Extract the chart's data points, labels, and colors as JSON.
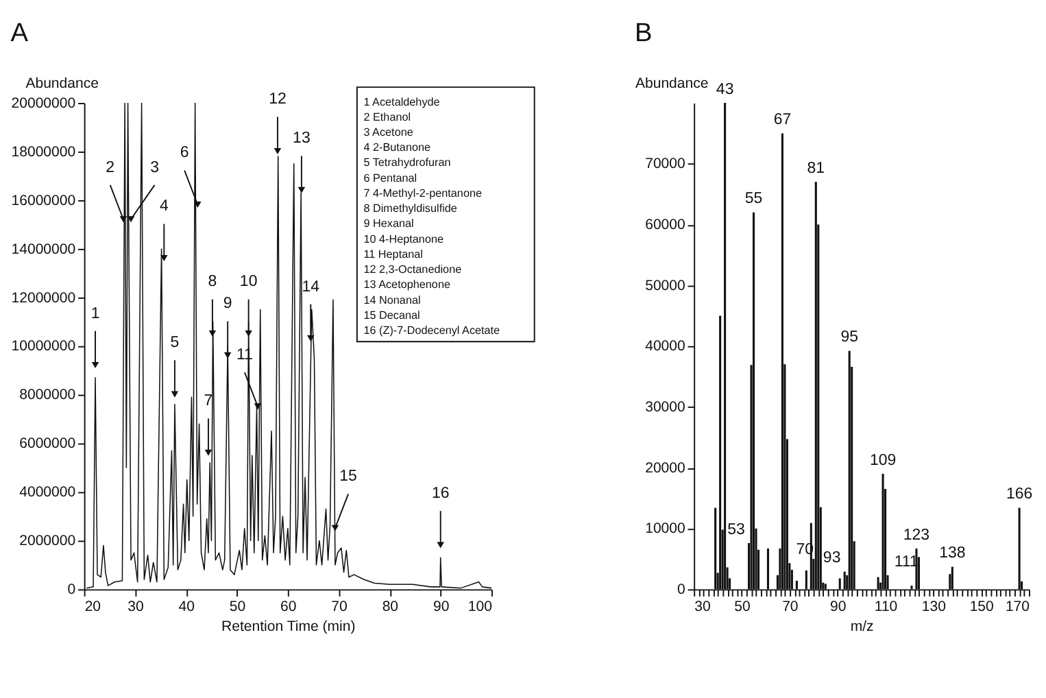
{
  "chart_data": [
    {
      "type": "line",
      "title": "A",
      "xlabel": "Retention Time (min)",
      "ylabel": "Abundance",
      "xlim": [
        20,
        100
      ],
      "xticks": [
        20,
        30,
        40,
        50,
        60,
        70,
        80,
        90,
        100
      ],
      "ylim": [
        0,
        20000000
      ],
      "yticks": [
        0,
        2000000,
        4000000,
        6000000,
        8000000,
        10000000,
        12000000,
        14000000,
        16000000,
        18000000,
        20000000
      ],
      "x": [
        20.5,
        21.8,
        22.2,
        22.6,
        23.3,
        23.8,
        24.2,
        24.7,
        26.0,
        27.5,
        28.0,
        28.3,
        28.6,
        29.2,
        29.8,
        30.5,
        31.3,
        31.8,
        32.5,
        33.0,
        33.6,
        34.3,
        35.2,
        35.7,
        36.5,
        37.2,
        37.5,
        37.8,
        38.4,
        39.0,
        39.5,
        39.8,
        40.2,
        40.6,
        41.1,
        41.4,
        41.8,
        42.2,
        42.6,
        43.0,
        43.6,
        44.1,
        44.4,
        44.7,
        45.0,
        45.3,
        45.8,
        46.5,
        47.2,
        47.6,
        48.2,
        48.7,
        49.5,
        50.5,
        51.0,
        51.5,
        52.0,
        52.3,
        52.7,
        53.0,
        53.4,
        53.9,
        54.2,
        54.6,
        55.0,
        55.5,
        56.0,
        56.8,
        57.2,
        57.6,
        58.1,
        58.5,
        59.0,
        59.5,
        60.0,
        60.4,
        61.2,
        61.6,
        62.0,
        62.6,
        63.0,
        63.4,
        63.8,
        64.7,
        65.2,
        65.6,
        66.2,
        66.7,
        67.5,
        67.9,
        68.3,
        68.9,
        69.3,
        69.8,
        70.5,
        71.0,
        71.5,
        72.0,
        73.0,
        75.0,
        77.0,
        80.0,
        84.5,
        88.0,
        89.9,
        90.0,
        90.2,
        94.0,
        97.5,
        98.2,
        100.0
      ],
      "series": [
        {
          "color": "#111111",
          "values": [
            50000,
            100000,
            8700000,
            600000,
            500000,
            1800000,
            700000,
            150000,
            300000,
            350000,
            20000000,
            5000000,
            20000000,
            1200000,
            1500000,
            300000,
            20000000,
            400000,
            1400000,
            300000,
            1100000,
            300000,
            14000000,
            400000,
            900000,
            5700000,
            1000000,
            7600000,
            800000,
            1200000,
            3500000,
            1500000,
            4500000,
            2000000,
            7900000,
            3000000,
            20000000,
            3500000,
            6800000,
            1500000,
            800000,
            2900000,
            1500000,
            5200000,
            2000000,
            11000000,
            1200000,
            1500000,
            800000,
            1200000,
            10000000,
            800000,
            600000,
            1600000,
            800000,
            2500000,
            1000000,
            11000000,
            2000000,
            5500000,
            1500000,
            7500000,
            2000000,
            11500000,
            1200000,
            2200000,
            1000000,
            6500000,
            1500000,
            3000000,
            17800000,
            1500000,
            3000000,
            1200000,
            2500000,
            1000000,
            17500000,
            1500000,
            3000000,
            16300000,
            1500000,
            4600000,
            1200000,
            11500000,
            9500000,
            1000000,
            2000000,
            1000000,
            3300000,
            1200000,
            2600000,
            11900000,
            1000000,
            1500000,
            1700000,
            700000,
            1600000,
            500000,
            600000,
            400000,
            250000,
            200000,
            200000,
            100000,
            100000,
            1300000,
            100000,
            50000,
            300000,
            100000,
            50000
          ]
        }
      ],
      "annotations": [
        {
          "text": "1",
          "x": 22.2,
          "y": 9000000
        },
        {
          "text": "2",
          "x": 27.7,
          "y": 15000000
        },
        {
          "text": "3",
          "x": 29.2,
          "y": 15000000
        },
        {
          "text": "4",
          "x": 35.7,
          "y": 13400000
        },
        {
          "text": "5",
          "x": 37.8,
          "y": 7800000
        },
        {
          "text": "6",
          "x": 42.3,
          "y": 15600000
        },
        {
          "text": "7",
          "x": 44.4,
          "y": 5400000
        },
        {
          "text": "8",
          "x": 45.2,
          "y": 10300000
        },
        {
          "text": "9",
          "x": 48.2,
          "y": 9400000
        },
        {
          "text": "10",
          "x": 52.3,
          "y": 10300000
        },
        {
          "text": "11",
          "x": 54.1,
          "y": 7300000
        },
        {
          "text": "12",
          "x": 58.0,
          "y": 17800000
        },
        {
          "text": "13",
          "x": 62.7,
          "y": 16200000
        },
        {
          "text": "14",
          "x": 64.5,
          "y": 10100000
        },
        {
          "text": "15",
          "x": 69.3,
          "y": 2300000
        },
        {
          "text": "16",
          "x": 90.0,
          "y": 1600000
        },
        "1  Acetaldehyde",
        "2  Ethanol",
        "3  Acetone",
        "4  2-Butanone",
        "5  Tetrahydrofuran",
        "6  Pentanal",
        "7  4-Methyl-2-pentanone",
        "8  Dimethyldisulfide",
        "9  Hexanal",
        "10  4-Heptanone",
        "11  Heptanal",
        "12  2,3-Octanedione",
        "13  Acetophenone",
        "14  Nonanal",
        "15  Decanal",
        "16  (Z)-7-Dodecenyl Acetate"
      ]
    },
    {
      "type": "bar",
      "title": "B",
      "xlabel": "m/z",
      "ylabel": "Abundance",
      "xlim": [
        30,
        170
      ],
      "xticks": [
        30,
        {
          "value": 32,
          "label": null
        },
        {
          "value": 34,
          "label": null
        },
        {
          "value": 36,
          "label": null
        },
        {
          "value": 38,
          "label": null
        },
        {
          "value": 40,
          "label": null
        },
        {
          "value": 42,
          "label": null
        },
        {
          "value": 44,
          "label": null
        },
        {
          "value": 46,
          "label": null
        },
        {
          "value": 48,
          "label": null
        },
        50,
        {
          "value": 52,
          "label": null
        },
        {
          "value": 54,
          "label": null
        },
        {
          "value": 56,
          "label": null
        },
        {
          "value": 58,
          "label": null
        },
        {
          "value": 60,
          "label": null
        },
        {
          "value": 62,
          "label": null
        },
        {
          "value": 64,
          "label": null
        },
        {
          "value": 66,
          "label": null
        },
        {
          "value": 68,
          "label": null
        },
        70,
        {
          "value": 72,
          "label": null
        },
        {
          "value": 74,
          "label": null
        },
        {
          "value": 76,
          "label": null
        },
        {
          "value": 78,
          "label": null
        },
        {
          "value": 80,
          "label": null
        },
        {
          "value": 82,
          "label": null
        },
        {
          "value": 84,
          "label": null
        },
        {
          "value": 86,
          "label": null
        },
        {
          "value": 88,
          "label": null
        },
        90,
        {
          "value": 92,
          "label": null
        },
        {
          "value": 94,
          "label": null
        },
        {
          "value": 96,
          "label": null
        },
        {
          "value": 98,
          "label": null
        },
        {
          "value": 100,
          "label": null
        },
        {
          "value": 102,
          "label": null
        },
        {
          "value": 104,
          "label": null
        },
        {
          "value": 106,
          "label": null
        },
        {
          "value": 108,
          "label": null
        },
        110,
        {
          "value": 112,
          "label": null
        },
        {
          "value": 114,
          "label": null
        },
        {
          "value": 116,
          "label": null
        },
        {
          "value": 118,
          "label": null
        },
        {
          "value": 120,
          "label": null
        },
        {
          "value": 122,
          "label": null
        },
        {
          "value": 124,
          "label": null
        },
        {
          "value": 126,
          "label": null
        },
        {
          "value": 128,
          "label": null
        },
        130,
        {
          "value": 132,
          "label": null
        },
        {
          "value": 134,
          "label": null
        },
        {
          "value": 136,
          "label": null
        },
        {
          "value": 138,
          "label": null
        },
        {
          "value": 140,
          "label": null
        },
        {
          "value": 142,
          "label": null
        },
        {
          "value": 144,
          "label": null
        },
        {
          "value": 146,
          "label": null
        },
        {
          "value": 148,
          "label": null
        },
        150,
        {
          "value": 152,
          "label": null
        },
        {
          "value": 154,
          "label": null
        },
        {
          "value": 156,
          "label": null
        },
        {
          "value": 158,
          "label": null
        },
        {
          "value": 160,
          "label": null
        },
        {
          "value": 162,
          "label": null
        },
        {
          "value": 164,
          "label": null
        },
        {
          "value": 166,
          "label": null
        },
        {
          "value": 168,
          "label": null
        },
        170
      ],
      "ylim": [
        0,
        80000
      ],
      "yticks": [
        0,
        10000,
        20000,
        30000,
        40000,
        50000,
        60000,
        70000
      ],
      "x": [
        39,
        40,
        41,
        42,
        43,
        44,
        45,
        53,
        54,
        55,
        56,
        57,
        61,
        65,
        66,
        67,
        68,
        69,
        70,
        71,
        73,
        77,
        79,
        80,
        81,
        82,
        83,
        84,
        85,
        91,
        93,
        94,
        95,
        96,
        97,
        107,
        108,
        109,
        110,
        111,
        121,
        123,
        124,
        137,
        138,
        166,
        167
      ],
      "series": [
        {
          "color": "#111111",
          "values": [
            13400,
            2700,
            45000,
            9800,
            80000,
            3600,
            1800,
            7600,
            36900,
            62000,
            10000,
            6500,
            6700,
            2300,
            6700,
            75000,
            37000,
            24700,
            4300,
            3200,
            1400,
            3100,
            10900,
            5000,
            67000,
            60000,
            13500,
            1100,
            900,
            1800,
            2900,
            2300,
            39200,
            36600,
            7900,
            2000,
            1100,
            19000,
            16500,
            2300,
            600,
            6700,
            5300,
            2500,
            3700,
            13400,
            1300
          ]
        }
      ],
      "annotations": [
        {
          "text": "43",
          "x": 43,
          "y": 80000
        },
        {
          "text": "53",
          "x": 53,
          "y": 7600
        },
        {
          "text": "55",
          "x": 55,
          "y": 62000
        },
        {
          "text": "67",
          "x": 67,
          "y": 75000
        },
        {
          "text": "70",
          "x": 70,
          "y": 4300
        },
        {
          "text": "81",
          "x": 81,
          "y": 67000
        },
        {
          "text": "93",
          "x": 93,
          "y": 2900
        },
        {
          "text": "95",
          "x": 95,
          "y": 39200
        },
        {
          "text": "109",
          "x": 109,
          "y": 19000
        },
        {
          "text": "111",
          "x": 111,
          "y": 2300
        },
        {
          "text": "123",
          "x": 123,
          "y": 6700
        },
        {
          "text": "138",
          "x": 138,
          "y": 3700
        },
        {
          "text": "166",
          "x": 166,
          "y": 13400
        }
      ]
    }
  ]
}
